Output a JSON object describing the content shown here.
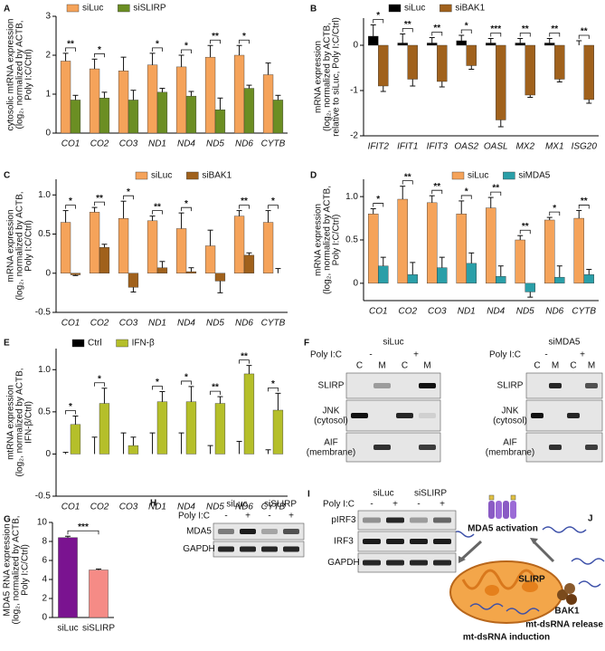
{
  "chart_data": [
    {
      "type": "bar",
      "panel": "A",
      "ylabel": [
        "cytosolic mtRNA expression",
        "(log₂, normalized by ACTB,",
        "Poly I:C/Ctrl)"
      ],
      "categories": [
        "CO1",
        "CO2",
        "CO3",
        "ND1",
        "ND4",
        "ND5",
        "ND6",
        "CYTB"
      ],
      "series": [
        {
          "name": "siLuc",
          "color": "#f5a35a",
          "values": [
            1.85,
            1.65,
            1.6,
            1.75,
            1.7,
            1.95,
            2.0,
            1.5
          ],
          "errors": [
            0.2,
            0.25,
            0.35,
            0.3,
            0.3,
            0.3,
            0.25,
            0.3
          ]
        },
        {
          "name": "siSLIRP",
          "color": "#6b8e23",
          "values": [
            0.85,
            0.9,
            0.85,
            1.05,
            0.95,
            0.6,
            1.15,
            0.85
          ],
          "errors": [
            0.12,
            0.15,
            0.25,
            0.1,
            0.12,
            0.3,
            0.08,
            0.12
          ]
        }
      ],
      "sig": [
        "**",
        "*",
        null,
        "*",
        "*",
        "**",
        "*",
        null
      ],
      "ylim": [
        0,
        3
      ],
      "yticks": [
        0,
        1,
        2,
        3
      ]
    },
    {
      "type": "bar",
      "panel": "B",
      "ylabel": [
        "mRNA expression",
        "(log₂, normalized by ACTB,",
        "relative to siLuc, Poly I:C/Ctrl)"
      ],
      "categories": [
        "IFIT2",
        "IFIT1",
        "IFIT3",
        "OAS2",
        "OASL",
        "MX2",
        "MX1",
        "ISG20"
      ],
      "series": [
        {
          "name": "siLuc",
          "color": "#000000",
          "values": [
            0.2,
            0.05,
            0.05,
            0.1,
            0.05,
            0.05,
            0.05,
            0.0
          ],
          "errors": [
            0.25,
            0.2,
            0.12,
            0.12,
            0.1,
            0.1,
            0.1,
            0.1
          ]
        },
        {
          "name": "siBAK1",
          "color": "#a0611c",
          "values": [
            -0.9,
            -0.75,
            -0.8,
            -0.45,
            -1.65,
            -1.1,
            -0.75,
            -1.2
          ],
          "errors": [
            0.12,
            0.15,
            0.12,
            0.08,
            0.15,
            0.05,
            0.06,
            0.08
          ]
        }
      ],
      "sig": [
        "*",
        "**",
        "**",
        "*",
        "***",
        "**",
        "**",
        "**"
      ],
      "ylim": [
        -2,
        0.6
      ],
      "yticks": [
        -2,
        -1,
        0
      ]
    },
    {
      "type": "bar",
      "panel": "C",
      "ylabel": [
        "mRNA expression",
        "(log₂, normalized by ACTB,",
        "Poly I:C/Ctrl)"
      ],
      "categories": [
        "CO1",
        "CO2",
        "CO3",
        "ND1",
        "ND4",
        "ND5",
        "ND6",
        "CYTB"
      ],
      "series": [
        {
          "name": "siLuc",
          "color": "#f5a35a",
          "values": [
            0.65,
            0.78,
            0.7,
            0.67,
            0.57,
            0.35,
            0.73,
            0.65
          ],
          "errors": [
            0.15,
            0.06,
            0.22,
            0.06,
            0.2,
            0.2,
            0.07,
            0.15
          ]
        },
        {
          "name": "siBAK1",
          "color": "#a0611c",
          "values": [
            -0.02,
            0.33,
            -0.18,
            0.07,
            0.02,
            -0.1,
            0.23,
            0.0
          ],
          "errors": [
            0.01,
            0.04,
            0.06,
            0.08,
            0.05,
            0.15,
            0.03,
            0.06
          ]
        }
      ],
      "sig": [
        "*",
        "**",
        "*",
        "**",
        "*",
        null,
        "**",
        "*"
      ],
      "ylim": [
        -0.5,
        1.2
      ],
      "yticks": [
        -0.5,
        0,
        0.5,
        {
          "value": 1,
          "label": "1.0"
        }
      ]
    },
    {
      "type": "bar",
      "panel": "D",
      "ylabel": [
        "mRNA expression",
        "(log₂, normalized by ACTB,",
        "Poly I:C/Ctrl)"
      ],
      "categories": [
        "CO1",
        "CO2",
        "CO3",
        "ND1",
        "ND4",
        "ND5",
        "ND6",
        "CYTB"
      ],
      "series": [
        {
          "name": "siLuc",
          "color": "#f5a35a",
          "values": [
            0.8,
            0.97,
            0.93,
            0.8,
            0.87,
            0.5,
            0.73,
            0.75
          ],
          "errors": [
            0.06,
            0.15,
            0.08,
            0.15,
            0.12,
            0.05,
            0.03,
            0.09
          ]
        },
        {
          "name": "siMDA5",
          "color": "#2a9fa8",
          "values": [
            0.2,
            0.1,
            0.18,
            0.23,
            0.08,
            -0.1,
            0.07,
            0.1
          ],
          "errors": [
            0.1,
            0.14,
            0.12,
            0.12,
            0.12,
            0.06,
            0.13,
            0.06
          ]
        }
      ],
      "sig": [
        "*",
        "**",
        "**",
        "*",
        "**",
        "**",
        "*",
        "**"
      ],
      "ylim": [
        -0.2,
        1.2
      ],
      "yticks": [
        0,
        0.5,
        {
          "value": 1,
          "label": "1.0"
        }
      ]
    },
    {
      "type": "bar",
      "panel": "E",
      "ylabel": [
        "mtRNA expression",
        "(log₂, normalized by ACTB,",
        "IFN-β/Ctrl)"
      ],
      "categories": [
        "CO1",
        "CO2",
        "CO3",
        "ND1",
        "ND4",
        "ND5",
        "ND6",
        "CYTB"
      ],
      "series": [
        {
          "name": "Ctrl",
          "color": "#000000",
          "values": [
            0.0,
            0.0,
            0.0,
            0.0,
            0.0,
            0.0,
            0.0,
            0.0
          ],
          "errors": [
            0.02,
            0.2,
            0.25,
            0.25,
            0.25,
            0.1,
            0.15,
            0.05
          ]
        },
        {
          "name": "IFN-β",
          "color": "#b5bf2a",
          "values": [
            0.35,
            0.6,
            0.1,
            0.62,
            0.62,
            0.6,
            0.95,
            0.52
          ],
          "errors": [
            0.1,
            0.18,
            0.1,
            0.12,
            0.18,
            0.08,
            0.1,
            0.2
          ]
        }
      ],
      "sig": [
        "*",
        "*",
        null,
        "*",
        "*",
        "**",
        "**",
        "*"
      ],
      "ylim": [
        -0.5,
        1.25
      ],
      "yticks": [
        -0.5,
        0,
        0.5,
        {
          "value": 1,
          "label": "1.0"
        }
      ]
    },
    {
      "type": "bar",
      "panel": "G",
      "ylabel": [
        "MDA5 RNA expression",
        "(log₂, normalized by ACTB,",
        "Poly I:C/Ctrl)"
      ],
      "categories": [
        "siLuc",
        "siSLIRP"
      ],
      "values": [
        8.4,
        5.0
      ],
      "errors": [
        0.15,
        0.1
      ],
      "colors": [
        "#7a1390",
        "#f58b86"
      ],
      "sig": "***",
      "ylim": [
        0,
        10
      ],
      "yticks": [
        0,
        2,
        4,
        6,
        8,
        10
      ]
    }
  ],
  "blots": [
    {
      "letter": "F",
      "sets": [
        {
          "groups": [
            "siLuc"
          ],
          "treatment": "Poly I:C",
          "signs": [
            "-",
            "+"
          ],
          "lanes": [
            "C",
            "M",
            "C",
            "M"
          ],
          "rows": [
            {
              "name": "SLIRP"
            },
            {
              "name": "JNK",
              "note": "(cytosol)"
            },
            {
              "name": "AIF",
              "note": "(membrane)"
            }
          ]
        },
        {
          "groups": [
            "siMDA5"
          ],
          "treatment": "Poly I:C",
          "signs": [
            "-",
            "+"
          ],
          "lanes": [
            "C",
            "M",
            "C",
            "M"
          ],
          "rows": [
            {
              "name": "SLIRP"
            },
            {
              "name": "JNK",
              "note": "(cytosol)"
            },
            {
              "name": "AIF",
              "note": "(membrane)"
            }
          ]
        }
      ]
    },
    {
      "letter": "H",
      "sets": [
        {
          "groups": [
            "siLuc",
            "siSLIRP"
          ],
          "treatment": "Poly I:C",
          "signs": [
            "-",
            "+",
            "-",
            "+"
          ],
          "rows": [
            {
              "name": "MDA5"
            },
            {
              "name": "GAPDH"
            }
          ]
        }
      ]
    },
    {
      "letter": "I",
      "sets": [
        {
          "groups": [
            "siLuc",
            "siSLIRP"
          ],
          "treatment": "Poly I:C",
          "signs": [
            "-",
            "+",
            "-",
            "+"
          ],
          "rows": [
            {
              "name": "pIRF3"
            },
            {
              "name": "IRF3"
            },
            {
              "name": "GAPDH"
            }
          ]
        }
      ]
    }
  ],
  "diagram": {
    "letter": "J",
    "activation": "MDA5 activation",
    "slirp": "SLIRP",
    "bak1": "BAK1",
    "induction": "mt-dsRNA induction",
    "release": "mt-dsRNA release"
  }
}
